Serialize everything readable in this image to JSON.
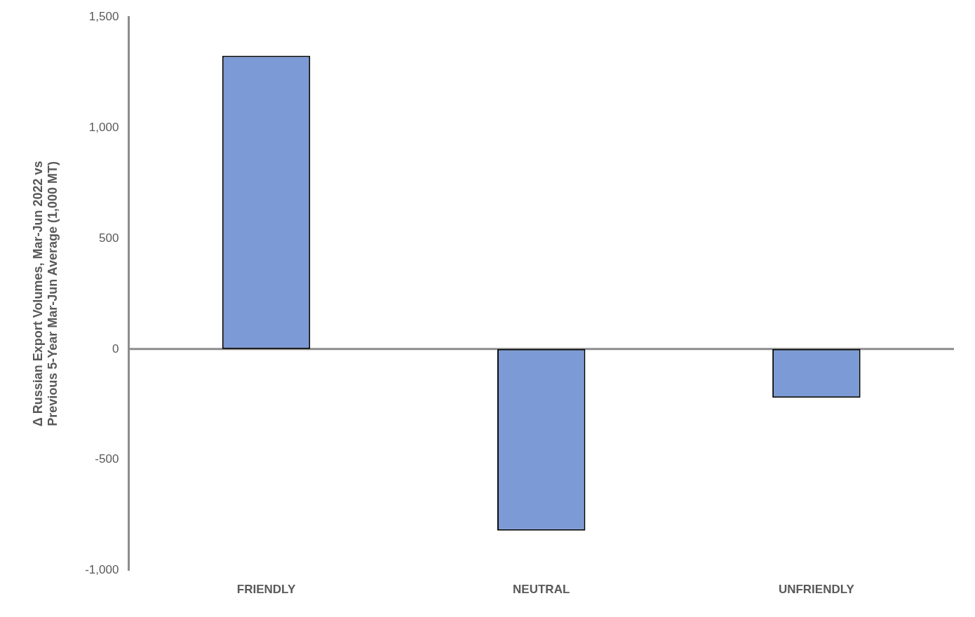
{
  "chart_data": {
    "type": "bar",
    "ylabel": "Δ Russian Export Volumes, Mar-Jun 2022 vs Previous 5-Year Mar-Jun Average (1,000 MT)",
    "categories": [
      "FRIENDLY",
      "NEUTRAL",
      "UNFRIENDLY"
    ],
    "values": [
      1325,
      -820,
      -220
    ],
    "color": "#7b9ad6",
    "ylim": [
      -1000,
      1500
    ],
    "yticks": [
      {
        "value": -1000,
        "label": "-1,000"
      },
      -500,
      0,
      500,
      {
        "value": 1000,
        "label": "1,000"
      },
      {
        "value": 1500,
        "label": "1,500"
      }
    ],
    "legend": false
  }
}
